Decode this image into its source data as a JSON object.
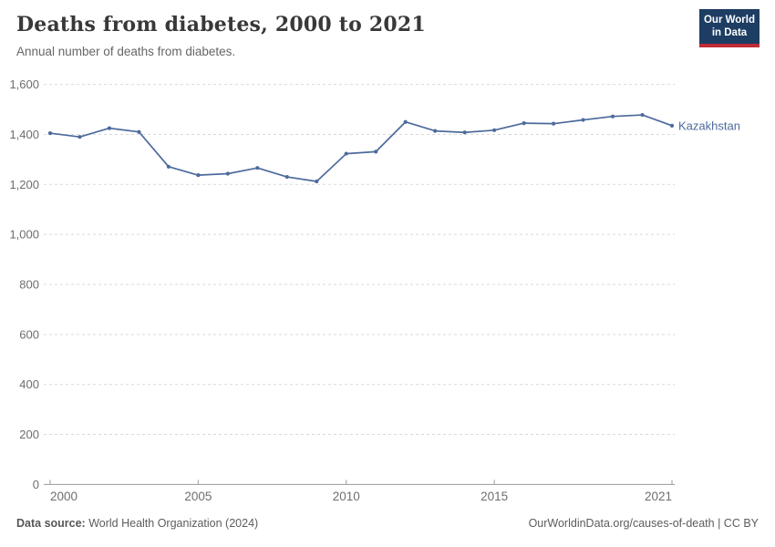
{
  "header": {
    "title": "Deaths from diabetes, 2000 to 2021",
    "subtitle": "Annual number of deaths from diabetes."
  },
  "logo": {
    "line1": "Our World",
    "line2": "in Data",
    "bg_color": "#1d3d63",
    "bar_color": "#bf2b36"
  },
  "chart_data": {
    "type": "line",
    "title": "Deaths from diabetes, 2000 to 2021",
    "xlabel": "",
    "ylabel": "",
    "xlim": [
      2000,
      2021
    ],
    "ylim": [
      0,
      1600
    ],
    "x_ticks": [
      2000,
      2005,
      2010,
      2015,
      2021
    ],
    "y_ticks": [
      0,
      200,
      400,
      600,
      800,
      1000,
      1200,
      1400,
      1600
    ],
    "grid": "horizontal-dashed",
    "legend_position": "end-of-line-label",
    "series": [
      {
        "name": "Kazakhstan",
        "color": "#4c6a9c",
        "x": [
          2000,
          2001,
          2002,
          2003,
          2004,
          2005,
          2006,
          2007,
          2008,
          2009,
          2010,
          2011,
          2012,
          2013,
          2014,
          2015,
          2016,
          2017,
          2018,
          2019,
          2020,
          2021
        ],
        "values": [
          1405,
          1390,
          1425,
          1410,
          1271,
          1237,
          1243,
          1266,
          1230,
          1212,
          1323,
          1331,
          1450,
          1414,
          1408,
          1417,
          1445,
          1443,
          1458,
          1472,
          1478,
          1435
        ]
      }
    ],
    "colors": {
      "gridline": "#d9d9d9",
      "axis": "#9a9a9a",
      "tick_label": "#6e6e6e"
    }
  },
  "footer": {
    "source_label": "Data source:",
    "source_value": " World Health Organization (2024)",
    "credit": "OurWorldinData.org/causes-of-death | CC BY"
  }
}
